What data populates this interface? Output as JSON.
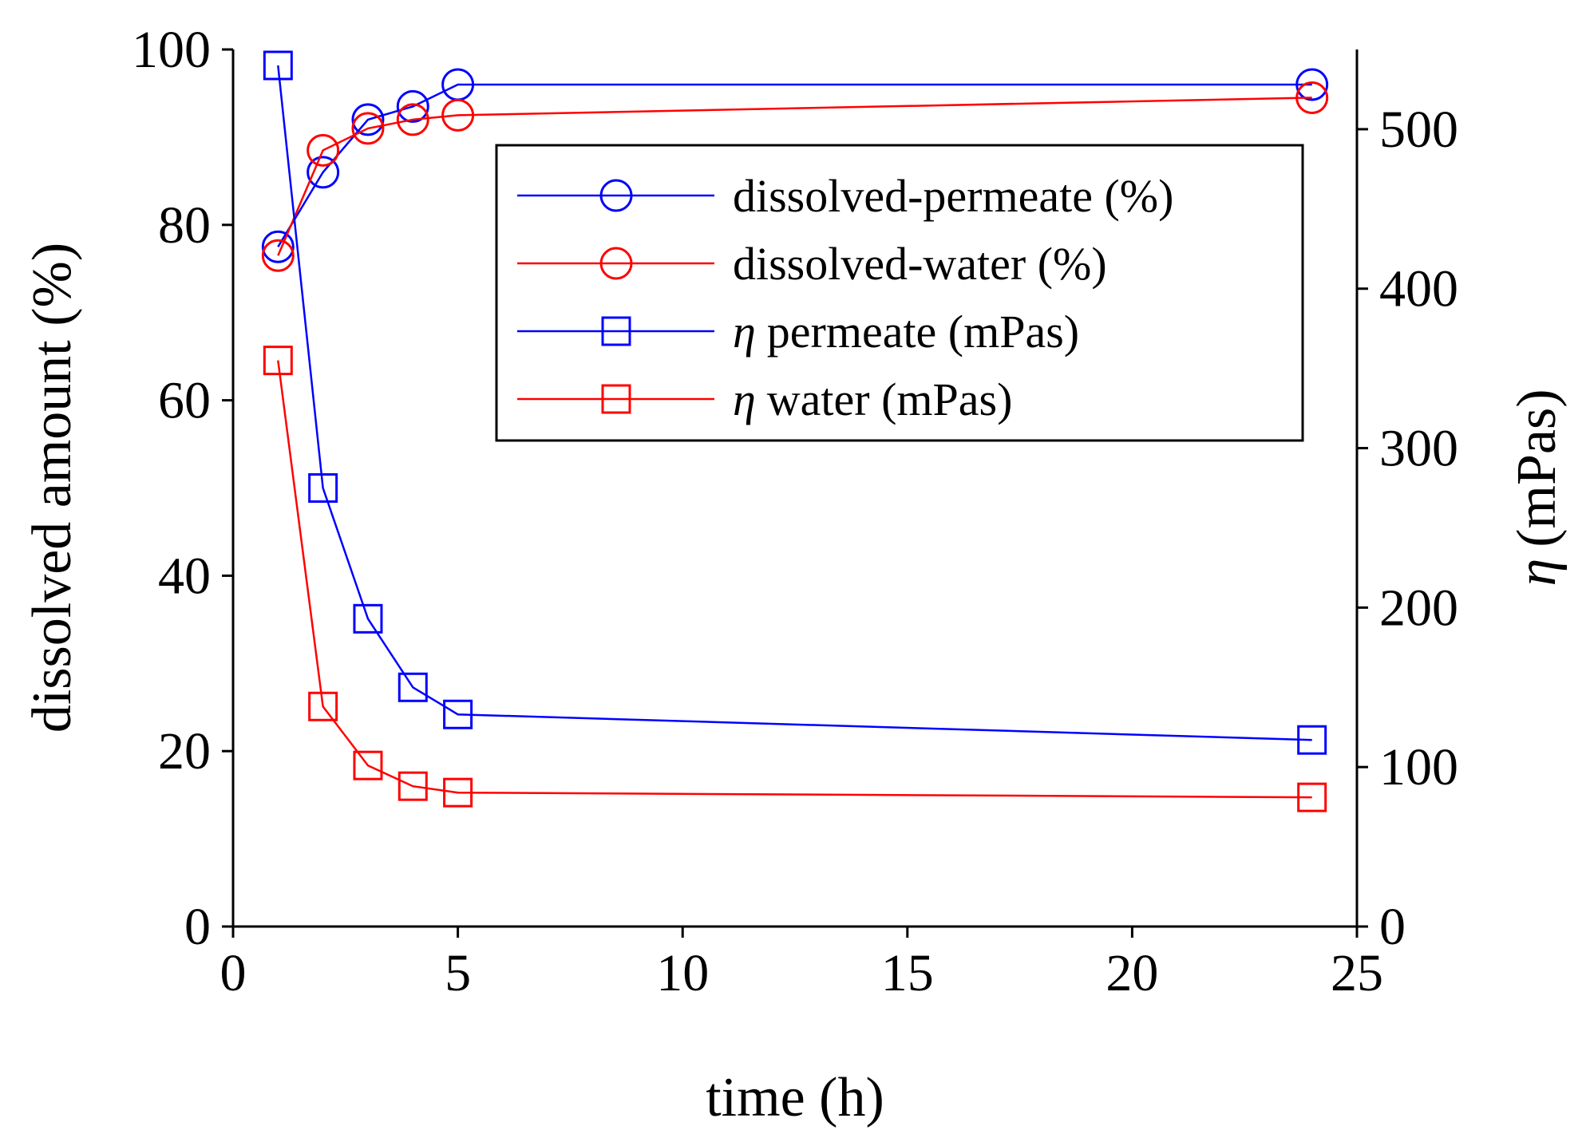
{
  "chart_data": {
    "type": "line",
    "x": [
      1,
      2,
      3,
      4,
      5,
      24
    ],
    "xlabel": "time (h)",
    "ylabel_left": "dissolved amount (%)",
    "ylabel_right_symbol": "η",
    "ylabel_right_unit": "(mPas)",
    "xlim": [
      0,
      25
    ],
    "ylim_left": [
      0,
      100
    ],
    "ylim_right": [
      0,
      550
    ],
    "x_ticks": [
      0,
      5,
      10,
      15,
      20,
      25
    ],
    "y_ticks_left": [
      0,
      20,
      40,
      60,
      80,
      100
    ],
    "y_ticks_right": [
      0,
      100,
      200,
      300,
      400,
      500
    ],
    "x_tick_labels": [
      "0",
      "5",
      "10",
      "15",
      "20",
      "25"
    ],
    "y_tick_labels_left": [
      "0",
      "20",
      "40",
      "60",
      "80",
      "100"
    ],
    "y_tick_labels_right": [
      "0",
      "100",
      "200",
      "300",
      "400",
      "500"
    ],
    "legend_position": "upper-right",
    "grid": false,
    "series": [
      {
        "name": "dissolved-permeate (%)",
        "symbol": "",
        "label": "dissolved-permeate (%)",
        "axis": "left",
        "marker": "circle",
        "color": "#0000ff",
        "values": [
          77.5,
          86,
          92,
          93.5,
          96,
          96
        ]
      },
      {
        "name": "dissolved-water (%)",
        "symbol": "",
        "label": "dissolved-water (%)",
        "axis": "left",
        "marker": "circle",
        "color": "#ff0000",
        "values": [
          76.5,
          88.5,
          91,
          92,
          92.5,
          94.5
        ]
      },
      {
        "name": "η permeate (mPas)",
        "symbol": "η",
        "label": "permeate (mPas)",
        "axis": "right",
        "marker": "square",
        "color": "#0000ff",
        "values": [
          540,
          275,
          193,
          150,
          133,
          117
        ]
      },
      {
        "name": "η water (mPas)",
        "symbol": "η",
        "label": "water (mPas)",
        "axis": "right",
        "marker": "square",
        "color": "#ff0000",
        "values": [
          355,
          138,
          101,
          88,
          84,
          81
        ]
      }
    ]
  }
}
